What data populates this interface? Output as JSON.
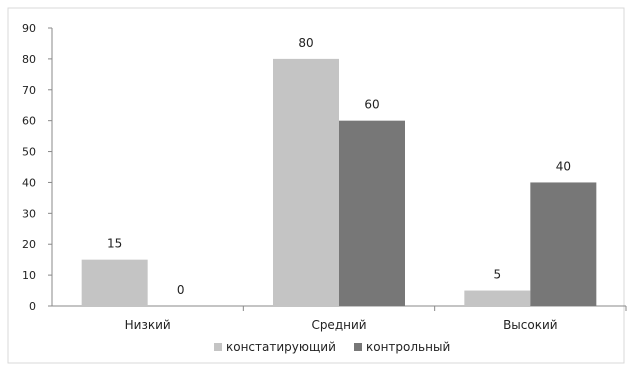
{
  "chart_data": {
    "type": "bar",
    "categories": [
      "Низкий",
      "Средний",
      "Высокий"
    ],
    "series": [
      {
        "name": "констатирующий",
        "values": [
          15,
          80,
          5
        ],
        "color": "#c4c4c4"
      },
      {
        "name": "контрольный",
        "values": [
          0,
          60,
          40
        ],
        "color": "#777777"
      }
    ],
    "ylim": [
      0,
      90
    ],
    "yticks": [
      0,
      10,
      20,
      30,
      40,
      50,
      60,
      70,
      80,
      90
    ],
    "grid": false,
    "legend": "bottom",
    "data_labels": true
  }
}
